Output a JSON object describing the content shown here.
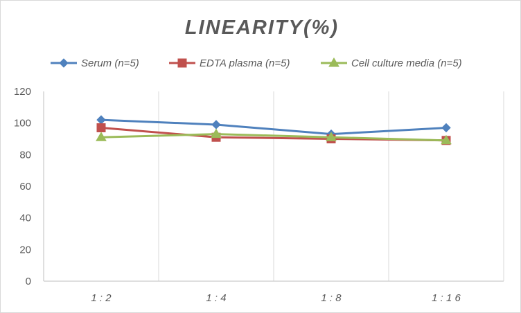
{
  "chart_data": {
    "type": "line",
    "title": "LINEARITY(%)",
    "xlabel": "",
    "ylabel": "",
    "categories": [
      "1:2",
      "1:4",
      "1:8",
      "1:16"
    ],
    "ylim": [
      0,
      120
    ],
    "yticks": [
      "0",
      "20",
      "40",
      "60",
      "80",
      "100",
      "120"
    ],
    "grid": "vertical",
    "legend_position": "top",
    "series": [
      {
        "name": "Serum (n=5)",
        "values": [
          102,
          99,
          93,
          97
        ],
        "color": "#4f81bd",
        "marker": "diamond"
      },
      {
        "name": "EDTA plasma (n=5)",
        "values": [
          97,
          91,
          90,
          89
        ],
        "color": "#c0504d",
        "marker": "square"
      },
      {
        "name": "Cell culture media (n=5)",
        "values": [
          91,
          93,
          91,
          89
        ],
        "color": "#9bbb59",
        "marker": "triangle"
      }
    ]
  }
}
